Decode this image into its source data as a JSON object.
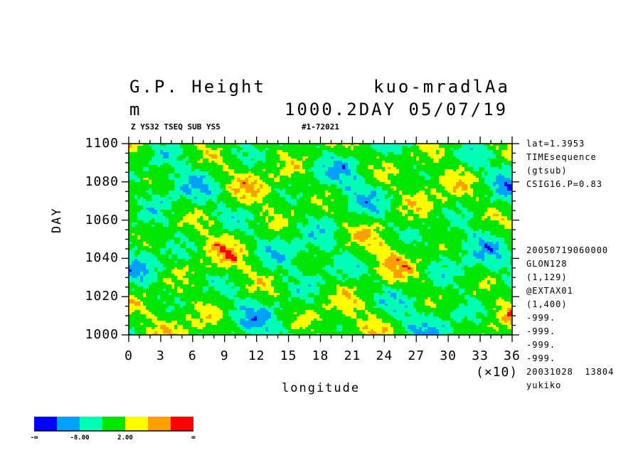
{
  "header": {
    "title": "G.P. Height",
    "run": "kuo-mradlAa",
    "units": "m",
    "level_date": "1000.2DAY 05/07/19",
    "subtitle_left": "Z YS32 TSEQ SUB YS5",
    "subtitle_right": "#1-72021"
  },
  "side_info": {
    "top": [
      "lat=1.3953",
      "TIMEsequence",
      "(gtsub)",
      "CSIG16.P=0.83"
    ],
    "bottom": [
      "20050719060000",
      "GLON128",
      "(1,129)",
      "@EXTAX01",
      "(1,400)",
      "-999.",
      "-999.",
      "-999.",
      "-999.",
      "20031028  13804",
      "yukiko"
    ]
  },
  "chart_data": {
    "type": "heatmap",
    "title": "G.P. Height",
    "xlabel": "longitude",
    "ylabel": "DAY",
    "x_multiplier": "(×10)",
    "xlim": [
      0,
      36
    ],
    "ylim": [
      1000,
      1100
    ],
    "x_ticks": [
      "0",
      "3",
      "6",
      "9",
      "12",
      "15",
      "18",
      "21",
      "24",
      "27",
      "30",
      "33",
      "36"
    ],
    "y_ticks": [
      "1000",
      "1020",
      "1040",
      "1060",
      "1080",
      "1100"
    ],
    "colorbar": {
      "colors": [
        "#0000ff",
        "#00a0ff",
        "#00ffb4",
        "#00e600",
        "#ffff00",
        "#ffa000",
        "#ff0000"
      ],
      "labels": [
        "-∞",
        "-8.00",
        "2.00",
        "∞"
      ]
    }
  }
}
